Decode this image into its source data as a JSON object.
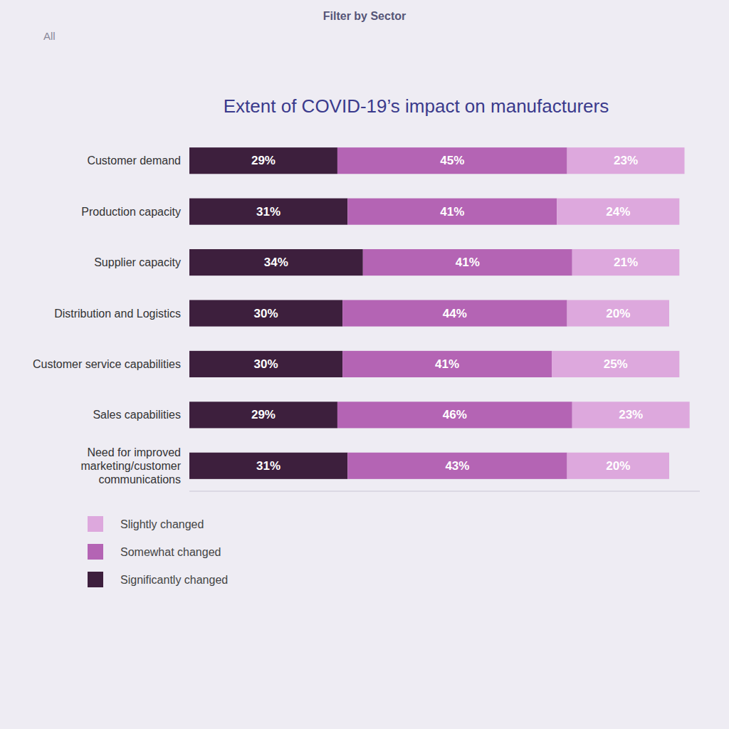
{
  "chart_data": {
    "type": "bar",
    "orientation": "horizontal",
    "stacked": true,
    "title": "Extent of COVID-19’s impact on manufacturers",
    "annotations": [
      "Filter by Sector",
      "All"
    ],
    "categories": [
      "Customer demand",
      "Production capacity",
      "Supplier capacity",
      "Distribution and Logistics",
      "Customer service capabilities",
      "Sales capabilities",
      "Need for improved\nmarketing/customer\ncommunications"
    ],
    "series": [
      {
        "name": "Significantly changed",
        "color": "#3d1f3d",
        "values": [
          29,
          31,
          34,
          30,
          30,
          29,
          31
        ],
        "value_labels": [
          "29%",
          "31%",
          "34%",
          "30%",
          "30%",
          "29%",
          "31%"
        ]
      },
      {
        "name": "Somewhat changed",
        "color": "#b464b4",
        "values": [
          45,
          41,
          41,
          44,
          41,
          46,
          43
        ],
        "value_labels": [
          "45%",
          "41%",
          "41%",
          "44%",
          "41%",
          "46%",
          "43%"
        ]
      },
      {
        "name": "Slightly changed",
        "color": "#dda8dd",
        "values": [
          23,
          24,
          21,
          20,
          25,
          23,
          20
        ],
        "value_labels": [
          "23%",
          "24%",
          "21%",
          "20%",
          "25%",
          "23%",
          "20%"
        ]
      }
    ],
    "xlim": [
      0,
      100
    ],
    "grid": false,
    "data_labels": true,
    "tick_labels": "y",
    "legend": "bottom"
  }
}
